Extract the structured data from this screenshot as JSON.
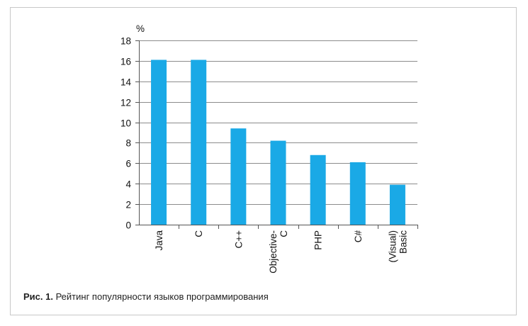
{
  "caption": {
    "lead": "Рис. 1.",
    "text": " Рейтинг популярности языков программирования"
  },
  "chart_data": {
    "type": "bar",
    "title": "",
    "xlabel": "",
    "ylabel": "%",
    "ylim": [
      0,
      18
    ],
    "yticks": [
      0,
      2,
      4,
      6,
      8,
      10,
      12,
      14,
      16,
      18
    ],
    "grid": true,
    "categories": [
      [
        "Java"
      ],
      [
        "C"
      ],
      [
        "C++"
      ],
      [
        "Objective-",
        "C"
      ],
      [
        "PHP"
      ],
      [
        "C#"
      ],
      [
        "(Visual)",
        "Basic"
      ]
    ],
    "values": [
      16.1,
      16.1,
      9.4,
      8.2,
      6.8,
      6.1,
      3.9
    ],
    "bar_color": "#1aa9e6"
  }
}
